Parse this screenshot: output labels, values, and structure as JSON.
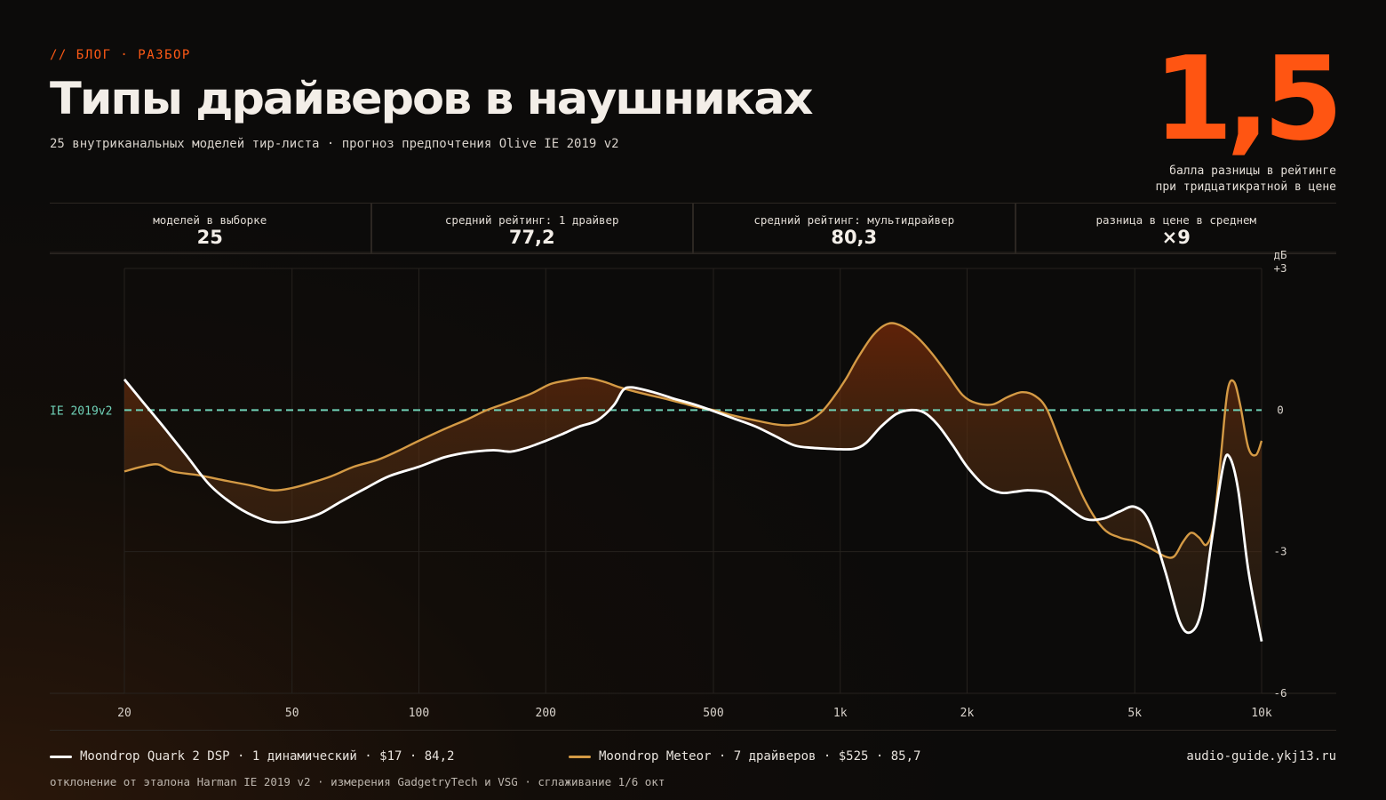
{
  "header": {
    "kicker": "// БЛОГ · РАЗБОР",
    "title": "Типы драйверов в наушниках",
    "subtitle": "25 внутриканальных моделей тир-листа · прогноз предпочтения Olive IE 2019 v2",
    "big_number": "1,5",
    "big_caption_line1": "балла разницы в рейтинге",
    "big_caption_line2": "при тридцатикратной в цене"
  },
  "stats": [
    {
      "label": "моделей в выборке",
      "value": "25"
    },
    {
      "label": "средний рейтинг: 1 драйвер",
      "value": "77,2"
    },
    {
      "label": "средний рейтинг: мультидрайвер",
      "value": "80,3"
    },
    {
      "label": "разница в цене в среднем",
      "value": "×9"
    }
  ],
  "chart_data": {
    "type": "line",
    "x_scale": "log",
    "xlim": [
      20,
      10000
    ],
    "ylim": [
      -6,
      3
    ],
    "ylabel": "дБ",
    "x_ticks": [
      20,
      50,
      100,
      200,
      500,
      1000,
      2000,
      5000,
      10000
    ],
    "x_tick_labels": [
      "20",
      "50",
      "100",
      "200",
      "500",
      "1k",
      "2k",
      "5k",
      "10k"
    ],
    "y_ticks": [
      3,
      0,
      -3,
      -6
    ],
    "y_tick_labels": [
      "+3",
      "0",
      "-3",
      "-6"
    ],
    "reference_line": {
      "label": "IE 2019v2",
      "y": 0,
      "color": "#6fd1b7"
    },
    "grid": true,
    "series": [
      {
        "name": "Moondrop Quark 2 DSP",
        "color": "#ffffff",
        "points": [
          [
            20,
            0.65
          ],
          [
            22,
            0.2
          ],
          [
            25,
            -0.4
          ],
          [
            28,
            -0.95
          ],
          [
            32,
            -1.6
          ],
          [
            37,
            -2.05
          ],
          [
            42,
            -2.3
          ],
          [
            46,
            -2.38
          ],
          [
            52,
            -2.33
          ],
          [
            58,
            -2.2
          ],
          [
            65,
            -1.95
          ],
          [
            75,
            -1.65
          ],
          [
            85,
            -1.4
          ],
          [
            100,
            -1.2
          ],
          [
            115,
            -1.0
          ],
          [
            130,
            -0.9
          ],
          [
            150,
            -0.85
          ],
          [
            165,
            -0.88
          ],
          [
            180,
            -0.8
          ],
          [
            200,
            -0.65
          ],
          [
            220,
            -0.5
          ],
          [
            240,
            -0.35
          ],
          [
            265,
            -0.22
          ],
          [
            290,
            0.1
          ],
          [
            305,
            0.42
          ],
          [
            320,
            0.48
          ],
          [
            360,
            0.38
          ],
          [
            400,
            0.25
          ],
          [
            450,
            0.12
          ],
          [
            500,
            -0.02
          ],
          [
            560,
            -0.18
          ],
          [
            630,
            -0.35
          ],
          [
            700,
            -0.55
          ],
          [
            780,
            -0.75
          ],
          [
            860,
            -0.8
          ],
          [
            940,
            -0.82
          ],
          [
            1000,
            -0.83
          ],
          [
            1080,
            -0.82
          ],
          [
            1150,
            -0.7
          ],
          [
            1250,
            -0.35
          ],
          [
            1360,
            -0.08
          ],
          [
            1470,
            0.0
          ],
          [
            1580,
            -0.05
          ],
          [
            1700,
            -0.3
          ],
          [
            1850,
            -0.75
          ],
          [
            2000,
            -1.2
          ],
          [
            2200,
            -1.6
          ],
          [
            2400,
            -1.75
          ],
          [
            2600,
            -1.73
          ],
          [
            2800,
            -1.7
          ],
          [
            3100,
            -1.75
          ],
          [
            3400,
            -2.0
          ],
          [
            3800,
            -2.3
          ],
          [
            4200,
            -2.3
          ],
          [
            4600,
            -2.15
          ],
          [
            5000,
            -2.05
          ],
          [
            5400,
            -2.35
          ],
          [
            5900,
            -3.4
          ],
          [
            6400,
            -4.5
          ],
          [
            6800,
            -4.7
          ],
          [
            7200,
            -4.25
          ],
          [
            7600,
            -2.8
          ],
          [
            8100,
            -1.2
          ],
          [
            8400,
            -1.0
          ],
          [
            8800,
            -1.7
          ],
          [
            9300,
            -3.4
          ],
          [
            10000,
            -4.9
          ]
        ]
      },
      {
        "name": "Moondrop Meteor",
        "color": "#d49a45",
        "points": [
          [
            20,
            -1.3
          ],
          [
            22,
            -1.2
          ],
          [
            24,
            -1.15
          ],
          [
            26,
            -1.3
          ],
          [
            30,
            -1.38
          ],
          [
            35,
            -1.5
          ],
          [
            40,
            -1.6
          ],
          [
            45,
            -1.7
          ],
          [
            50,
            -1.65
          ],
          [
            55,
            -1.55
          ],
          [
            62,
            -1.4
          ],
          [
            70,
            -1.2
          ],
          [
            80,
            -1.05
          ],
          [
            90,
            -0.85
          ],
          [
            100,
            -0.65
          ],
          [
            115,
            -0.4
          ],
          [
            130,
            -0.2
          ],
          [
            145,
            0.0
          ],
          [
            165,
            0.18
          ],
          [
            185,
            0.35
          ],
          [
            205,
            0.55
          ],
          [
            225,
            0.63
          ],
          [
            250,
            0.68
          ],
          [
            275,
            0.6
          ],
          [
            300,
            0.48
          ],
          [
            340,
            0.35
          ],
          [
            380,
            0.25
          ],
          [
            420,
            0.15
          ],
          [
            460,
            0.06
          ],
          [
            500,
            0.0
          ],
          [
            560,
            -0.12
          ],
          [
            630,
            -0.22
          ],
          [
            700,
            -0.3
          ],
          [
            760,
            -0.32
          ],
          [
            830,
            -0.25
          ],
          [
            900,
            -0.05
          ],
          [
            960,
            0.25
          ],
          [
            1030,
            0.65
          ],
          [
            1100,
            1.1
          ],
          [
            1200,
            1.6
          ],
          [
            1300,
            1.83
          ],
          [
            1400,
            1.78
          ],
          [
            1520,
            1.55
          ],
          [
            1650,
            1.2
          ],
          [
            1800,
            0.75
          ],
          [
            1950,
            0.32
          ],
          [
            2100,
            0.15
          ],
          [
            2300,
            0.12
          ],
          [
            2500,
            0.28
          ],
          [
            2700,
            0.38
          ],
          [
            2900,
            0.3
          ],
          [
            3100,
            0.0
          ],
          [
            3400,
            -0.9
          ],
          [
            3800,
            -1.9
          ],
          [
            4200,
            -2.5
          ],
          [
            4600,
            -2.7
          ],
          [
            5000,
            -2.78
          ],
          [
            5500,
            -2.95
          ],
          [
            5900,
            -3.1
          ],
          [
            6200,
            -3.1
          ],
          [
            6500,
            -2.8
          ],
          [
            6800,
            -2.6
          ],
          [
            7100,
            -2.7
          ],
          [
            7400,
            -2.85
          ],
          [
            7700,
            -2.4
          ],
          [
            8000,
            -1.0
          ],
          [
            8300,
            0.4
          ],
          [
            8600,
            0.6
          ],
          [
            8900,
            0.1
          ],
          [
            9300,
            -0.8
          ],
          [
            9700,
            -0.95
          ],
          [
            10000,
            -0.65
          ]
        ]
      }
    ]
  },
  "legend": [
    {
      "label": "Moondrop Quark 2 DSP · 1 динамический · $17 · 84,2",
      "color": "#ffffff"
    },
    {
      "label": "Moondrop Meteor · 7 драйверов · $525 · 85,7",
      "color": "#d49a45"
    }
  ],
  "site": "audio-guide.ykj13.ru",
  "footnote": "отклонение от эталона Harman IE 2019 v2 · измерения GadgetryTech и VSG · сглаживание 1/6 окт"
}
